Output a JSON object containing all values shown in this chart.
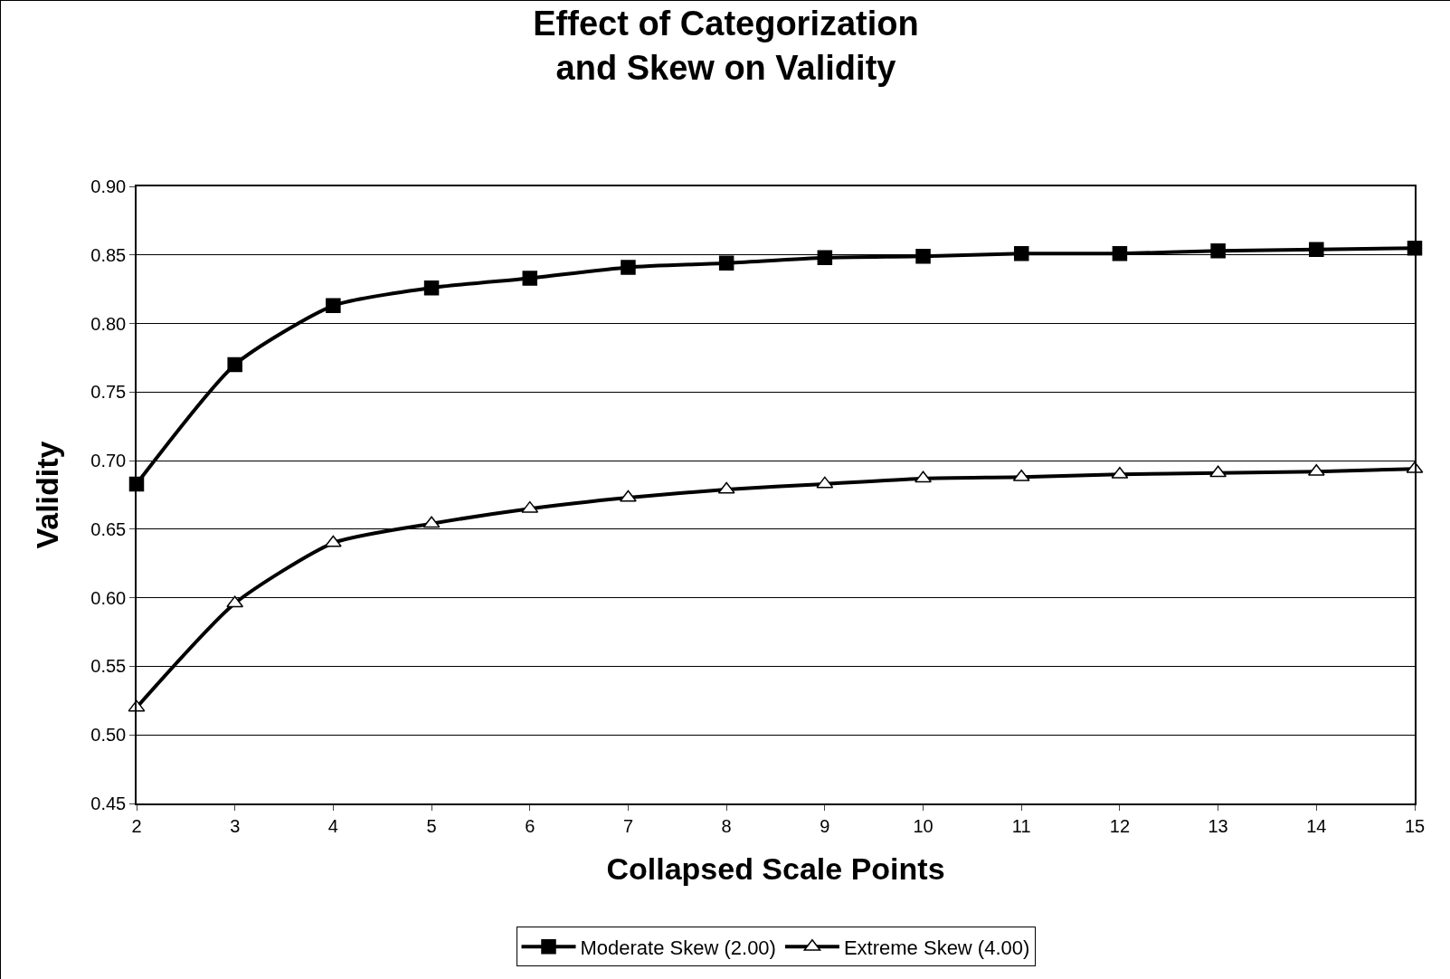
{
  "chart_data": {
    "type": "line",
    "title": "Effect of Categorization\nand Skew on Validity",
    "xlabel": "Collapsed Scale Points",
    "ylabel": "Validity",
    "x": [
      2,
      3,
      4,
      5,
      6,
      7,
      8,
      9,
      10,
      11,
      12,
      13,
      14,
      15
    ],
    "series": [
      {
        "name": "Moderate Skew (2.00)",
        "color": "#000000",
        "marker": "square",
        "values": [
          0.683,
          0.77,
          0.813,
          0.826,
          0.833,
          0.841,
          0.844,
          0.848,
          0.849,
          0.851,
          0.851,
          0.853,
          0.854,
          0.855
        ]
      },
      {
        "name": "Extreme Skew (4.00)",
        "color": "#000000",
        "marker": "triangle",
        "values": [
          0.52,
          0.596,
          0.64,
          0.654,
          0.665,
          0.673,
          0.679,
          0.683,
          0.687,
          0.688,
          0.69,
          0.691,
          0.692,
          0.694
        ]
      }
    ],
    "xlim": [
      2,
      15
    ],
    "xticks": [
      2,
      3,
      4,
      5,
      6,
      7,
      8,
      9,
      10,
      11,
      12,
      13,
      14,
      15
    ],
    "ylim": [
      0.45,
      0.9
    ],
    "yticks": [
      {
        "value": 0.45,
        "label": "0.45"
      },
      {
        "value": 0.5,
        "label": "0.50"
      },
      {
        "value": 0.55,
        "label": "0.55"
      },
      {
        "value": 0.6,
        "label": "0.60"
      },
      {
        "value": 0.65,
        "label": "0.65"
      },
      {
        "value": 0.7,
        "label": "0.70"
      },
      {
        "value": 0.75,
        "label": "0.75"
      },
      {
        "value": 0.8,
        "label": "0.80"
      },
      {
        "value": 0.85,
        "label": "0.85"
      },
      {
        "value": 0.9,
        "label": "0.90"
      }
    ],
    "grid": "y",
    "legend": "bottom",
    "line_style": "solid"
  }
}
